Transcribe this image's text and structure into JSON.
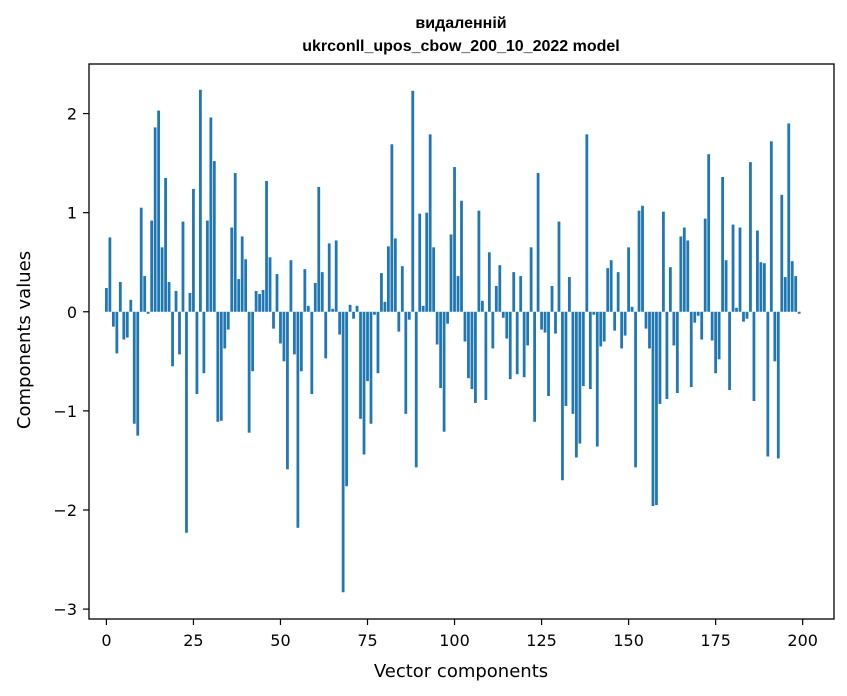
{
  "chart_data": {
    "type": "bar",
    "title_line1": "видаленній",
    "title_line2": "ukrconll_upos_cbow_200_10_2022 model",
    "xlabel": "Vector components",
    "ylabel": "Components values",
    "xlim": [
      -5,
      209
    ],
    "ylim": [
      -3.1,
      2.5
    ],
    "xticks": [
      0,
      25,
      50,
      75,
      100,
      125,
      150,
      175,
      200
    ],
    "yticks": [
      -3,
      -2,
      -1,
      0,
      1,
      2
    ],
    "ytick_labels": [
      "−3",
      "−2",
      "−1",
      "0",
      "1",
      "2"
    ],
    "bar_color": "#1f77b4",
    "values": [
      0.24,
      0.75,
      -0.15,
      -0.42,
      0.3,
      -0.28,
      -0.26,
      0.12,
      -1.13,
      -1.25,
      1.05,
      0.36,
      -0.02,
      0.92,
      1.86,
      2.03,
      0.65,
      1.35,
      0.3,
      -0.55,
      0.21,
      -0.43,
      0.91,
      -2.23,
      0.19,
      1.24,
      -0.83,
      2.24,
      -0.62,
      0.92,
      1.96,
      1.52,
      -1.11,
      -1.1,
      -0.37,
      -0.18,
      0.85,
      1.4,
      0.33,
      0.76,
      0.53,
      -1.22,
      -0.6,
      0.21,
      0.18,
      0.22,
      1.32,
      0.55,
      -0.17,
      0.38,
      -0.32,
      -0.5,
      -1.59,
      0.52,
      -0.43,
      -2.18,
      -0.6,
      0.43,
      0.06,
      -0.83,
      0.29,
      1.26,
      0.4,
      -0.47,
      0.69,
      0.03,
      0.72,
      -0.23,
      -2.83,
      -1.76,
      0.07,
      -0.07,
      0.06,
      -1.08,
      -1.44,
      -0.7,
      -1.13,
      -0.03,
      -0.62,
      0.39,
      0.1,
      0.66,
      1.69,
      0.74,
      -0.2,
      0.46,
      -1.03,
      -0.08,
      2.23,
      -1.57,
      0.99,
      0.06,
      1.0,
      1.79,
      0.65,
      -0.33,
      -0.77,
      -1.21,
      -0.12,
      0.78,
      1.46,
      0.36,
      1.12,
      -0.3,
      -0.67,
      -0.78,
      -0.92,
      1.02,
      0.11,
      -0.89,
      0.6,
      -0.37,
      0.26,
      0.47,
      -0.06,
      -0.27,
      -0.68,
      0.4,
      -0.63,
      0.36,
      -0.66,
      -0.34,
      0.65,
      -1.11,
      1.4,
      -0.18,
      -0.21,
      -0.85,
      0.26,
      -0.22,
      0.91,
      -1.7,
      -0.95,
      0.35,
      -1.03,
      -1.47,
      -1.33,
      -0.75,
      1.79,
      -0.78,
      -0.03,
      -1.36,
      -0.35,
      -0.3,
      0.44,
      0.52,
      -0.19,
      0.4,
      -0.37,
      -0.24,
      0.65,
      0.05,
      -1.57,
      1.02,
      1.07,
      -0.17,
      -0.37,
      -1.96,
      -1.95,
      -0.93,
      1.01,
      -0.88,
      0.45,
      -0.34,
      -0.82,
      0.76,
      0.85,
      0.72,
      -0.76,
      -0.11,
      -0.04,
      -0.28,
      0.94,
      1.59,
      -0.29,
      -0.62,
      -0.48,
      1.36,
      0.52,
      -0.79,
      0.88,
      0.04,
      0.85,
      -0.1,
      -0.07,
      1.51,
      -0.9,
      0.82,
      0.5,
      0.49,
      -1.46,
      1.72,
      -0.5,
      -1.48,
      1.18,
      0.35,
      1.9,
      0.51,
      0.36,
      -0.02
    ]
  }
}
